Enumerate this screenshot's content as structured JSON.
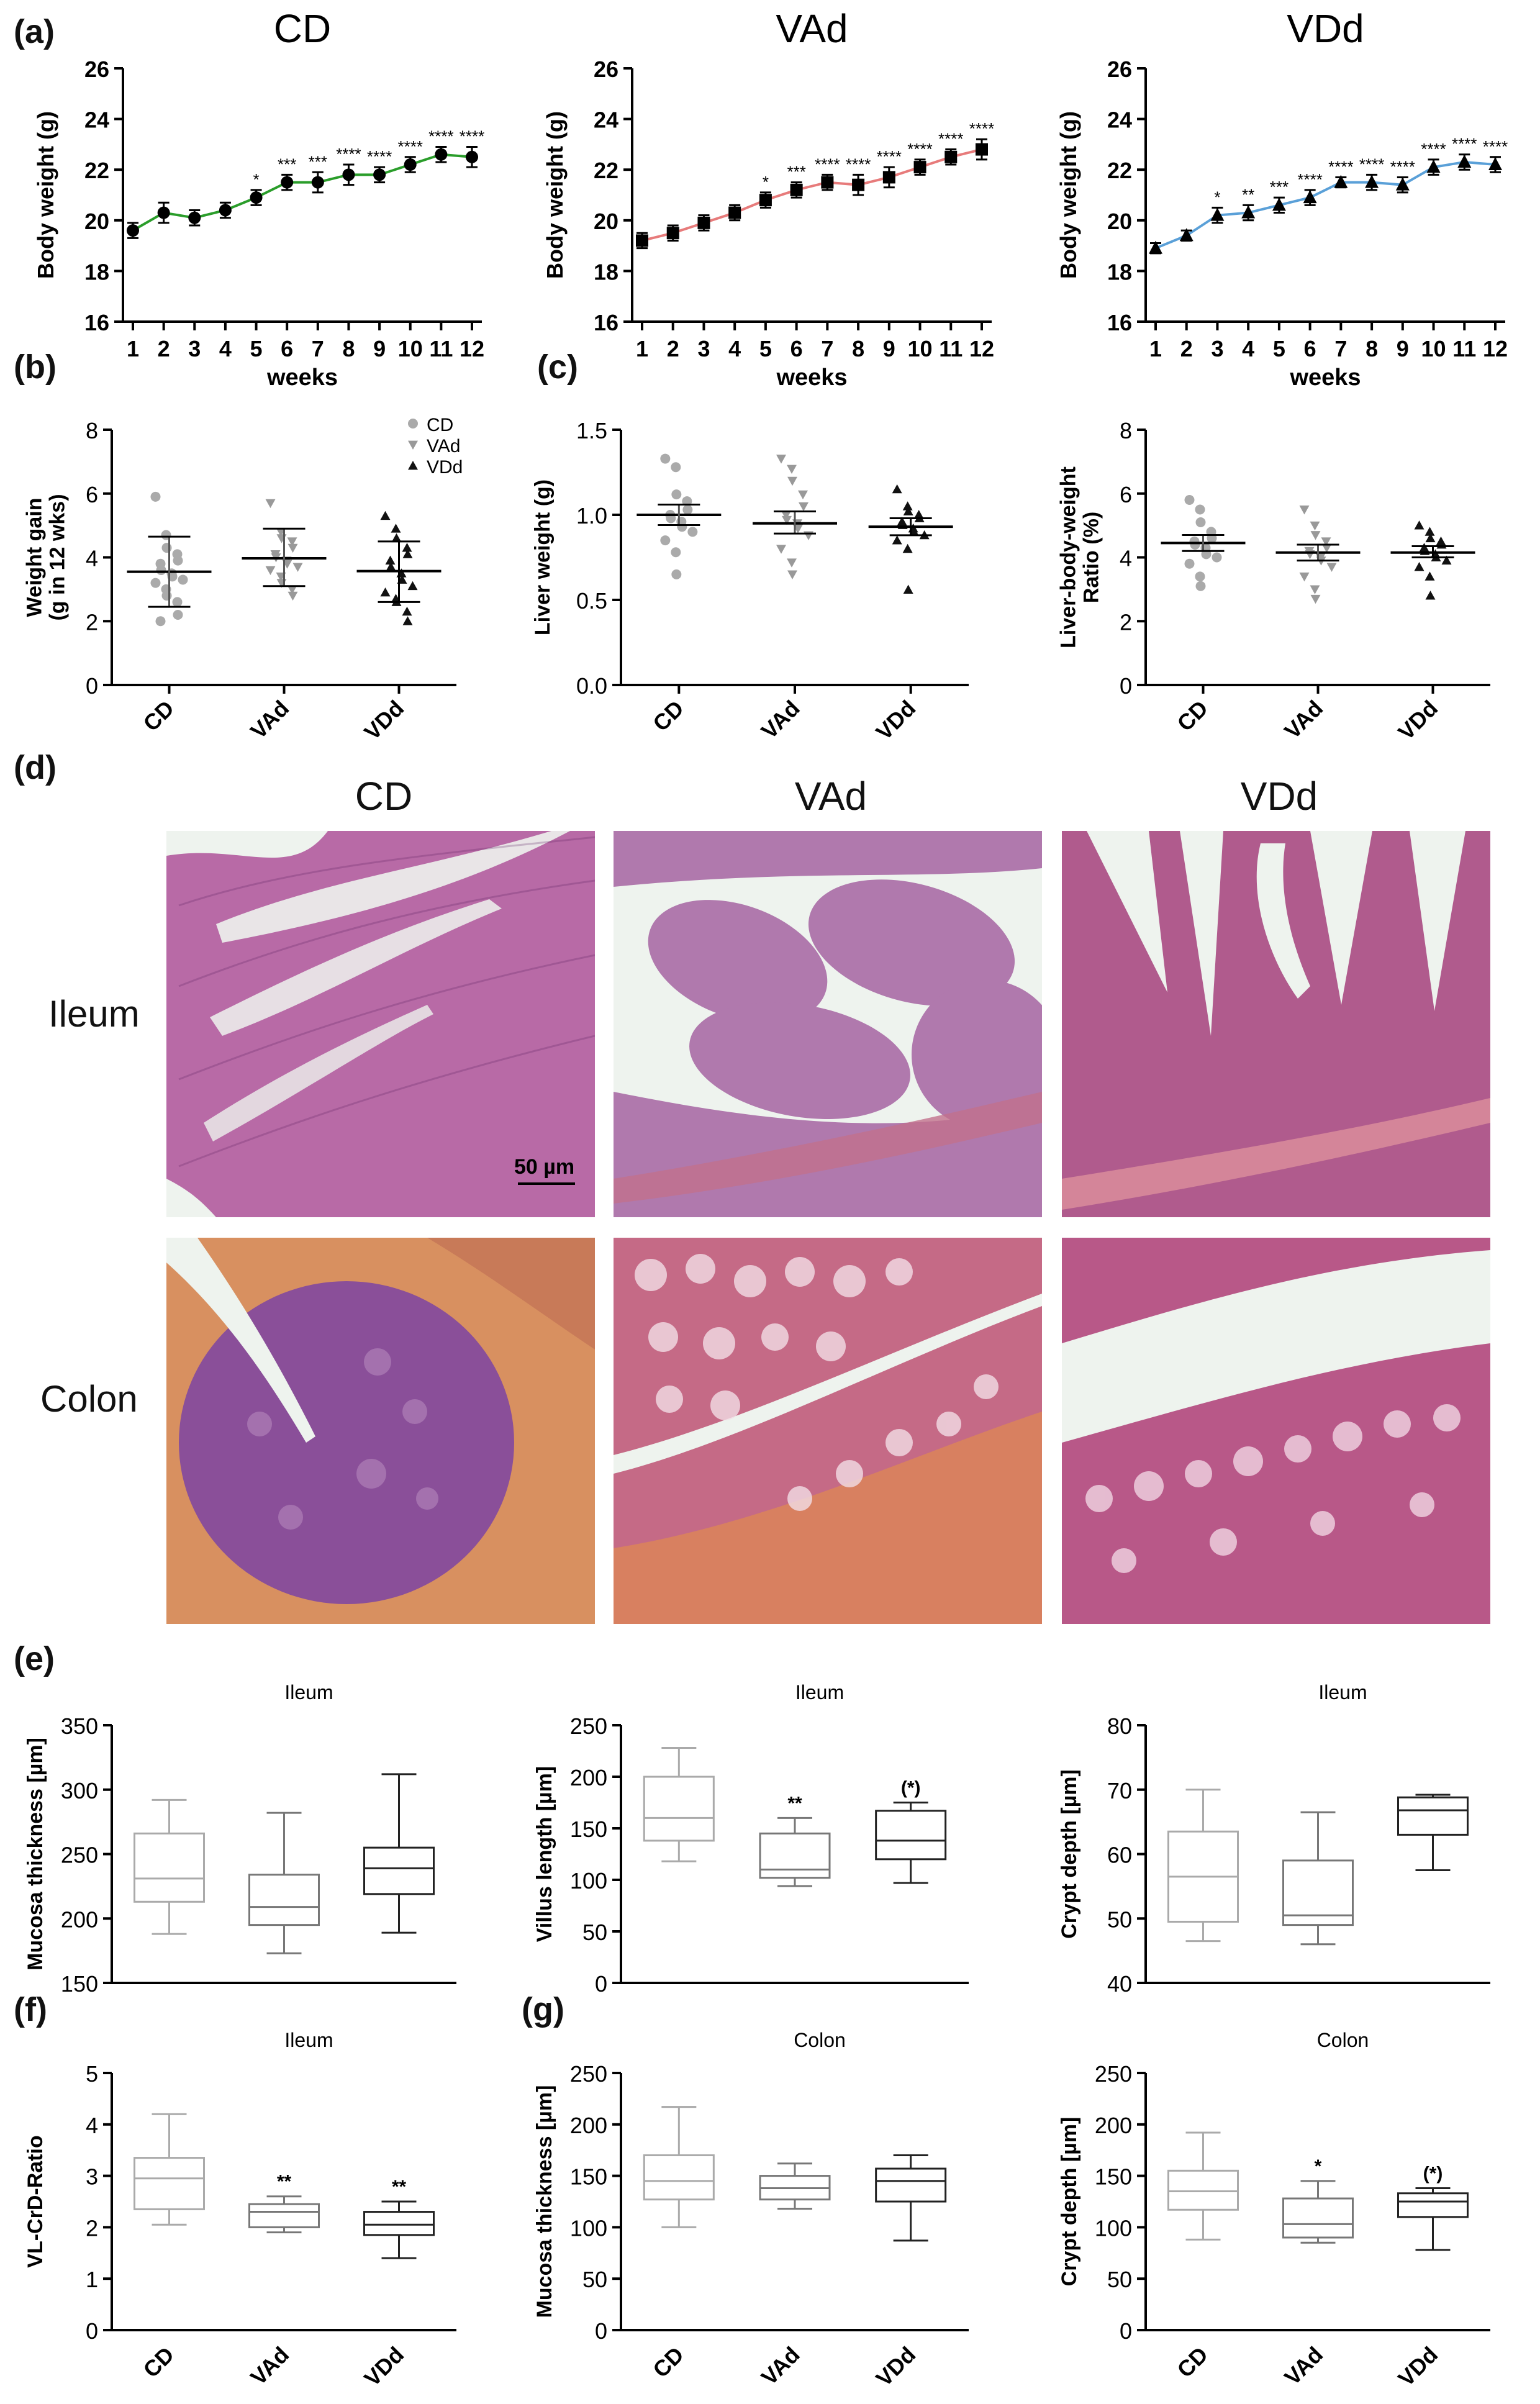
{
  "figure": {
    "panel_labels": {
      "a": "(a)",
      "b": "(b)",
      "c": "(c)",
      "d": "(d)",
      "e": "(e)",
      "f": "(f)",
      "g": "(g)"
    },
    "histology": {
      "columns": [
        "CD",
        "VAd",
        "VDd"
      ],
      "rows": [
        "Ileum",
        "Colon"
      ],
      "scale_bar": "50 µm",
      "tint": {
        "ileum_cd": "#b86aa6",
        "ileum_vad": "#b079ad",
        "ileum_vdd": "#b05b8d",
        "colon_cd": "#8a4f99",
        "colon_vad": "#c56a86",
        "colon_vdd": "#b85888",
        "lumen": "#eef3ee"
      }
    }
  },
  "chart_data": [
    {
      "id": "a-cd",
      "type": "line",
      "title": "CD",
      "xlabel": "weeks",
      "ylabel": "Body weight (g)",
      "x": [
        1,
        2,
        3,
        4,
        5,
        6,
        7,
        8,
        9,
        10,
        11,
        12
      ],
      "xlim": [
        1,
        12
      ],
      "ylim": [
        16,
        26
      ],
      "yticks": [
        16,
        18,
        20,
        22,
        24,
        26
      ],
      "series": [
        {
          "color": "#2a9d2a",
          "values": [
            19.6,
            20.3,
            20.1,
            20.4,
            20.9,
            21.5,
            21.5,
            21.8,
            21.8,
            22.2,
            22.6,
            22.5
          ],
          "error": [
            0.3,
            0.4,
            0.3,
            0.3,
            0.3,
            0.3,
            0.4,
            0.4,
            0.3,
            0.3,
            0.3,
            0.4
          ],
          "markers": "circle",
          "significance": [
            "",
            "",
            "",
            "",
            "*",
            "***",
            "***",
            "****",
            "****",
            "****",
            "****",
            "****"
          ]
        }
      ]
    },
    {
      "id": "a-vad",
      "type": "line",
      "title": "VAd",
      "xlabel": "weeks",
      "ylabel": "Body weight (g)",
      "x": [
        1,
        2,
        3,
        4,
        5,
        6,
        7,
        8,
        9,
        10,
        11,
        12
      ],
      "xlim": [
        1,
        12
      ],
      "ylim": [
        16,
        26
      ],
      "yticks": [
        16,
        18,
        20,
        22,
        24,
        26
      ],
      "series": [
        {
          "color": "#e77b7b",
          "values": [
            19.2,
            19.5,
            19.9,
            20.3,
            20.8,
            21.2,
            21.5,
            21.4,
            21.7,
            22.1,
            22.5,
            22.8
          ],
          "error": [
            0.3,
            0.3,
            0.3,
            0.3,
            0.3,
            0.3,
            0.3,
            0.4,
            0.4,
            0.3,
            0.3,
            0.4
          ],
          "markers": "square",
          "significance": [
            "",
            "",
            "",
            "",
            "*",
            "***",
            "****",
            "****",
            "****",
            "****",
            "****",
            "****"
          ]
        }
      ]
    },
    {
      "id": "a-vdd",
      "type": "line",
      "title": "VDd",
      "xlabel": "weeks",
      "ylabel": "Body weight (g)",
      "x": [
        1,
        2,
        3,
        4,
        5,
        6,
        7,
        8,
        9,
        10,
        11,
        12
      ],
      "xlim": [
        1,
        12
      ],
      "ylim": [
        16,
        26
      ],
      "yticks": [
        16,
        18,
        20,
        22,
        24,
        26
      ],
      "series": [
        {
          "color": "#5aa0d8",
          "values": [
            18.9,
            19.4,
            20.2,
            20.3,
            20.6,
            20.9,
            21.5,
            21.5,
            21.4,
            22.1,
            22.3,
            22.2
          ],
          "error": [
            0.2,
            0.2,
            0.3,
            0.3,
            0.3,
            0.3,
            0.2,
            0.3,
            0.3,
            0.3,
            0.3,
            0.3
          ],
          "markers": "triangle",
          "significance": [
            "",
            "",
            "*",
            "**",
            "***",
            "****",
            "****",
            "****",
            "****",
            "****",
            "****",
            "****"
          ]
        }
      ]
    },
    {
      "id": "b-gain",
      "type": "scatter",
      "title": "",
      "ylabel": "Weight gain\n(g in 12 wks)",
      "categories": [
        "CD",
        "VAd",
        "VDd"
      ],
      "ylim": [
        0,
        8
      ],
      "yticks": [
        0,
        2,
        4,
        6,
        8
      ],
      "legend": {
        "placement": "top-right",
        "entries": [
          "CD",
          "VAd",
          "VDd"
        ]
      },
      "groups": [
        {
          "name": "CD",
          "marker": "circle",
          "color": "#aaaaaa",
          "mean": 3.55,
          "sd_low": 2.45,
          "sd_high": 4.65,
          "points": [
            5.9,
            4.7,
            4.3,
            4.1,
            3.9,
            3.8,
            3.6,
            3.5,
            3.4,
            3.3,
            3.2,
            3.0,
            2.8,
            2.6,
            2.2,
            2.0
          ]
        },
        {
          "name": "VAd",
          "marker": "triangle-down",
          "color": "#999999",
          "mean": 3.97,
          "sd_low": 3.1,
          "sd_high": 4.9,
          "points": [
            5.7,
            4.8,
            4.6,
            4.5,
            4.3,
            4.1,
            4.0,
            3.9,
            3.8,
            3.7,
            3.6,
            3.4,
            3.2,
            3.0,
            2.8
          ]
        },
        {
          "name": "VDd",
          "marker": "triangle",
          "color": "#111111",
          "mean": 3.57,
          "sd_low": 2.6,
          "sd_high": 4.5,
          "points": [
            5.3,
            4.9,
            4.6,
            4.3,
            4.1,
            3.9,
            3.7,
            3.5,
            3.3,
            3.1,
            2.9,
            2.7,
            2.6,
            2.3,
            2.0
          ]
        }
      ]
    },
    {
      "id": "c-liver",
      "type": "scatter",
      "title": "",
      "ylabel": "Liver weight (g)",
      "categories": [
        "CD",
        "VAd",
        "VDd"
      ],
      "ylim": [
        0,
        1.5
      ],
      "yticks": [
        0.0,
        0.5,
        1.0,
        1.5
      ],
      "groups": [
        {
          "name": "CD",
          "marker": "circle",
          "color": "#aaaaaa",
          "mean": 1.0,
          "sd_low": 0.94,
          "sd_high": 1.06,
          "points": [
            1.33,
            1.28,
            1.12,
            1.08,
            1.03,
            1.0,
            0.98,
            0.96,
            0.93,
            0.9,
            0.85,
            0.78,
            0.65
          ]
        },
        {
          "name": "VAd",
          "marker": "triangle-down",
          "color": "#999999",
          "mean": 0.95,
          "sd_low": 0.89,
          "sd_high": 1.02,
          "points": [
            1.33,
            1.27,
            1.2,
            1.12,
            1.05,
            1.0,
            0.97,
            0.95,
            0.92,
            0.88,
            0.8,
            0.72,
            0.65
          ]
        },
        {
          "name": "VDd",
          "marker": "triangle",
          "color": "#111111",
          "mean": 0.93,
          "sd_low": 0.88,
          "sd_high": 0.98,
          "points": [
            1.15,
            1.05,
            1.02,
            1.0,
            0.98,
            0.96,
            0.94,
            0.92,
            0.9,
            0.88,
            0.85,
            0.8,
            0.56
          ]
        }
      ]
    },
    {
      "id": "c-ratio",
      "type": "scatter",
      "title": "",
      "ylabel": "Liver-body-weight\nRatio (%)",
      "categories": [
        "CD",
        "VAd",
        "VDd"
      ],
      "ylim": [
        0,
        8
      ],
      "yticks": [
        0,
        2,
        4,
        6,
        8
      ],
      "groups": [
        {
          "name": "CD",
          "marker": "circle",
          "color": "#aaaaaa",
          "mean": 4.45,
          "sd_low": 4.2,
          "sd_high": 4.7,
          "points": [
            5.8,
            5.5,
            5.1,
            4.8,
            4.6,
            4.5,
            4.4,
            4.3,
            4.1,
            4.0,
            3.8,
            3.4,
            3.1
          ]
        },
        {
          "name": "VAd",
          "marker": "triangle-down",
          "color": "#999999",
          "mean": 4.15,
          "sd_low": 3.9,
          "sd_high": 4.4,
          "points": [
            5.5,
            5.0,
            4.7,
            4.5,
            4.3,
            4.2,
            4.1,
            4.0,
            3.9,
            3.7,
            3.4,
            3.0,
            2.7
          ]
        },
        {
          "name": "VDd",
          "marker": "triangle",
          "color": "#111111",
          "mean": 4.15,
          "sd_low": 4.0,
          "sd_high": 4.35,
          "points": [
            5.0,
            4.8,
            4.6,
            4.5,
            4.4,
            4.3,
            4.2,
            4.1,
            4.0,
            3.9,
            3.7,
            3.4,
            2.8
          ]
        }
      ]
    },
    {
      "id": "e-mucosa",
      "type": "box",
      "title": "Ileum",
      "ylabel": "Mucosa thickness [µm]",
      "categories": [
        "CD",
        "VAd",
        "VDd"
      ],
      "ylim": [
        150,
        350
      ],
      "yticks": [
        150,
        200,
        250,
        300,
        350
      ],
      "boxes": [
        {
          "min": 188,
          "q1": 213,
          "median": 231,
          "q3": 266,
          "max": 292,
          "color": "#aaaaaa",
          "sig": ""
        },
        {
          "min": 173,
          "q1": 195,
          "median": 209,
          "q3": 234,
          "max": 282,
          "color": "#777777",
          "sig": ""
        },
        {
          "min": 189,
          "q1": 219,
          "median": 239,
          "q3": 255,
          "max": 312,
          "color": "#222222",
          "sig": ""
        }
      ]
    },
    {
      "id": "e-villus",
      "type": "box",
      "title": "Ileum",
      "ylabel": "Villus length [µm]",
      "categories": [
        "CD",
        "VAd",
        "VDd"
      ],
      "ylim": [
        0,
        250
      ],
      "yticks": [
        0,
        50,
        100,
        150,
        200,
        250
      ],
      "boxes": [
        {
          "min": 118,
          "q1": 138,
          "median": 160,
          "q3": 200,
          "max": 228,
          "color": "#aaaaaa",
          "sig": ""
        },
        {
          "min": 94,
          "q1": 102,
          "median": 110,
          "q3": 145,
          "max": 160,
          "color": "#777777",
          "sig": "**"
        },
        {
          "min": 97,
          "q1": 120,
          "median": 138,
          "q3": 167,
          "max": 175,
          "color": "#222222",
          "sig": "(*)"
        }
      ]
    },
    {
      "id": "e-crypt",
      "type": "box",
      "title": "Ileum",
      "ylabel": "Crypt depth [µm]",
      "categories": [
        "CD",
        "VAd",
        "VDd"
      ],
      "ylim": [
        40,
        80
      ],
      "yticks": [
        40,
        50,
        60,
        70,
        80
      ],
      "boxes": [
        {
          "min": 46.5,
          "q1": 49.5,
          "median": 56.5,
          "q3": 63.5,
          "max": 70,
          "color": "#aaaaaa",
          "sig": ""
        },
        {
          "min": 46,
          "q1": 49,
          "median": 50.5,
          "q3": 59,
          "max": 66.5,
          "color": "#777777",
          "sig": ""
        },
        {
          "min": 57.5,
          "q1": 63,
          "median": 66.8,
          "q3": 68.8,
          "max": 69.2,
          "color": "#222222",
          "sig": ""
        }
      ]
    },
    {
      "id": "f-ratio",
      "type": "box",
      "title": "Ileum",
      "ylabel": "VL-CrD-Ratio",
      "categories": [
        "CD",
        "VAd",
        "VDd"
      ],
      "ylim": [
        0,
        5
      ],
      "yticks": [
        0,
        1,
        2,
        3,
        4,
        5
      ],
      "boxes": [
        {
          "min": 2.05,
          "q1": 2.35,
          "median": 2.95,
          "q3": 3.35,
          "max": 4.2,
          "color": "#aaaaaa",
          "sig": ""
        },
        {
          "min": 1.9,
          "q1": 2.0,
          "median": 2.3,
          "q3": 2.45,
          "max": 2.6,
          "color": "#777777",
          "sig": "**"
        },
        {
          "min": 1.4,
          "q1": 1.85,
          "median": 2.05,
          "q3": 2.3,
          "max": 2.5,
          "color": "#222222",
          "sig": "**"
        }
      ]
    },
    {
      "id": "g-mucosa",
      "type": "box",
      "title": "Colon",
      "ylabel": "Mucosa thickness [µm]",
      "categories": [
        "CD",
        "VAd",
        "VDd"
      ],
      "ylim": [
        0,
        250
      ],
      "yticks": [
        0,
        50,
        100,
        150,
        200,
        250
      ],
      "boxes": [
        {
          "min": 100,
          "q1": 127,
          "median": 145,
          "q3": 170,
          "max": 217,
          "color": "#aaaaaa",
          "sig": ""
        },
        {
          "min": 118,
          "q1": 127,
          "median": 138,
          "q3": 150,
          "max": 162,
          "color": "#777777",
          "sig": ""
        },
        {
          "min": 87,
          "q1": 125,
          "median": 145,
          "q3": 157,
          "max": 170,
          "color": "#222222",
          "sig": ""
        }
      ]
    },
    {
      "id": "g-crypt",
      "type": "box",
      "title": "Colon",
      "ylabel": "Crypt depth [µm]",
      "categories": [
        "CD",
        "VAd",
        "VDd"
      ],
      "ylim": [
        0,
        250
      ],
      "yticks": [
        0,
        50,
        100,
        150,
        200,
        250
      ],
      "boxes": [
        {
          "min": 88,
          "q1": 117,
          "median": 135,
          "q3": 155,
          "max": 192,
          "color": "#aaaaaa",
          "sig": ""
        },
        {
          "min": 85,
          "q1": 90,
          "median": 103,
          "q3": 128,
          "max": 145,
          "color": "#777777",
          "sig": "*"
        },
        {
          "min": 78,
          "q1": 110,
          "median": 125,
          "q3": 133,
          "max": 138,
          "color": "#222222",
          "sig": "(*)"
        }
      ]
    }
  ]
}
